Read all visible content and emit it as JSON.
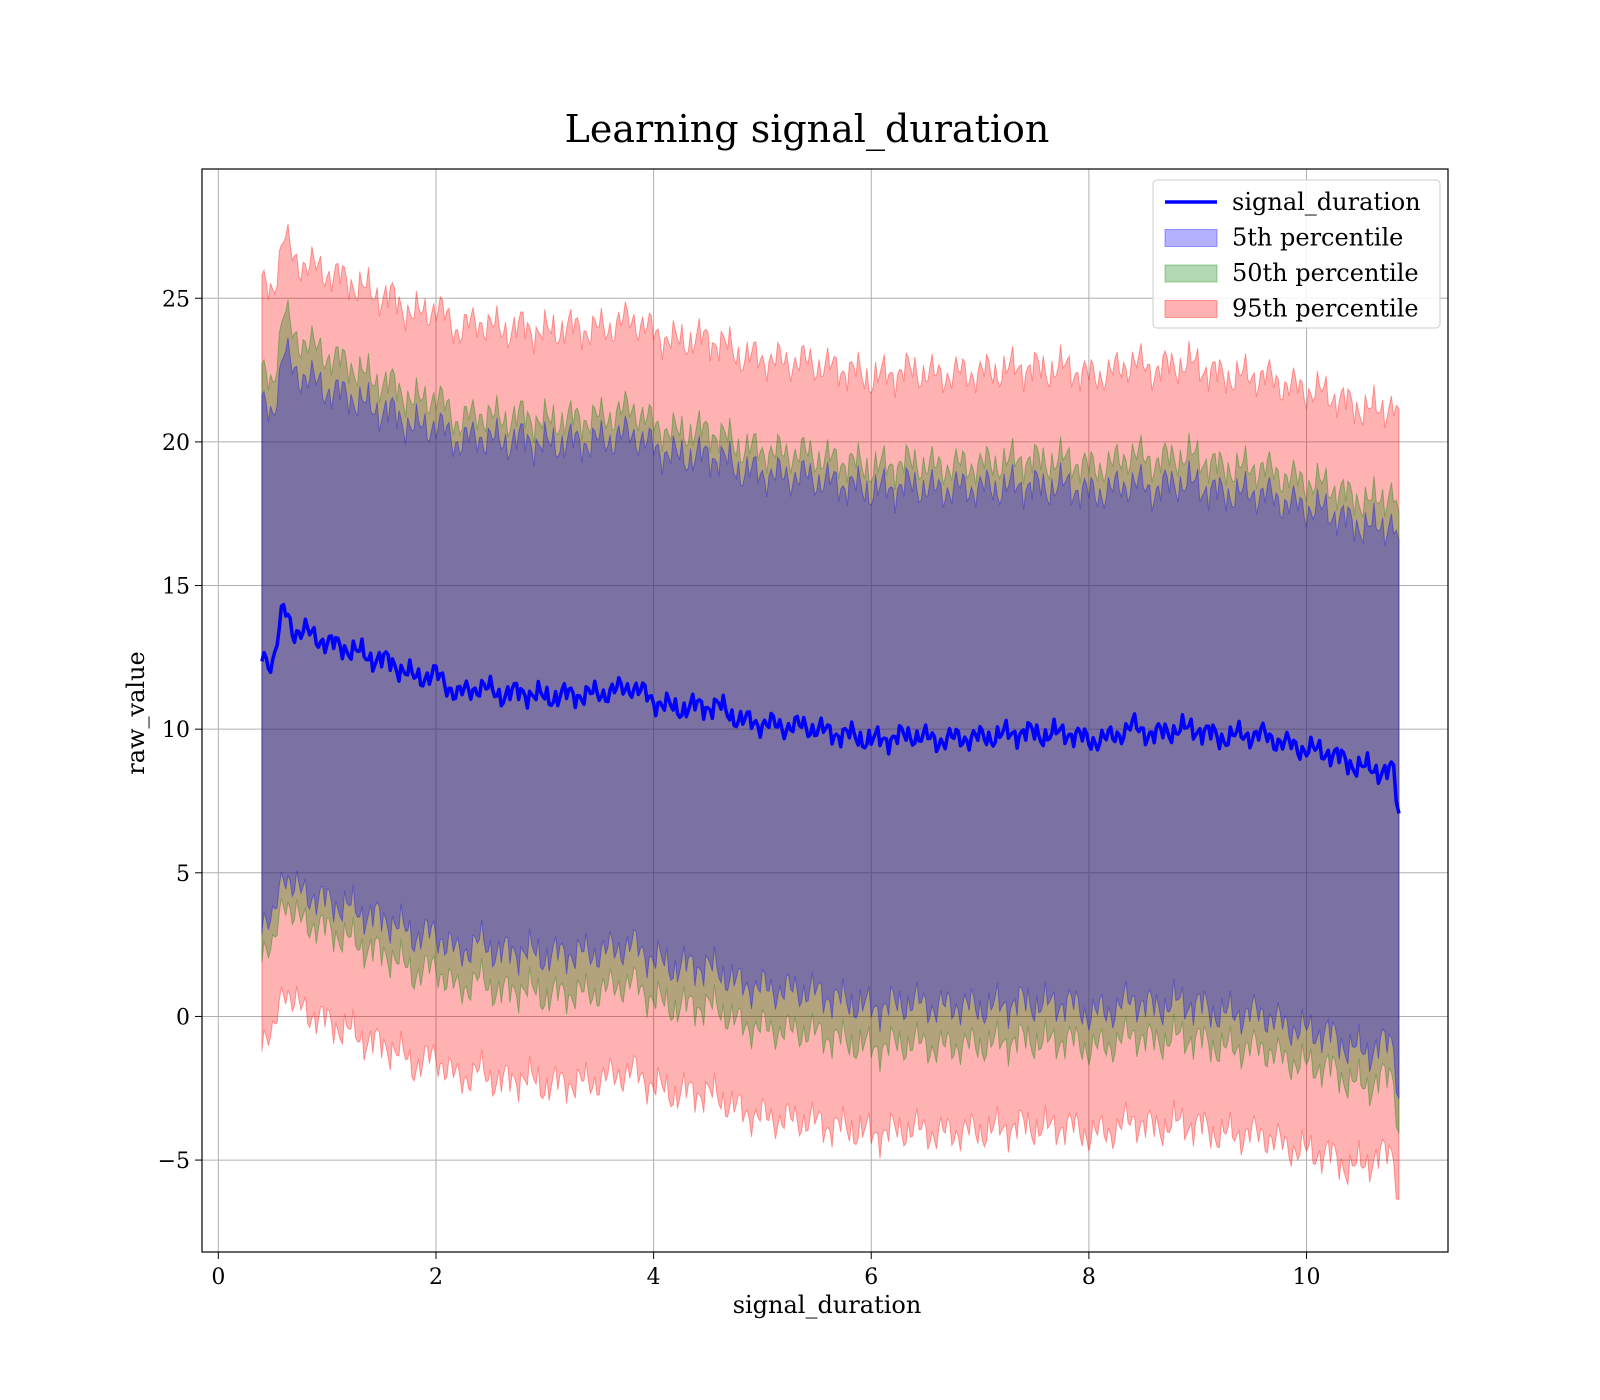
{
  "chart_data": {
    "type": "area",
    "title": "Learning signal_duration",
    "xlabel": "signal_duration",
    "ylabel": "raw_value",
    "xlim": [
      -0.15,
      11.3
    ],
    "ylim": [
      -8.2,
      29.5
    ],
    "xticks": [
      0,
      2,
      4,
      6,
      8,
      10
    ],
    "yticks": [
      -5,
      0,
      5,
      10,
      15,
      20,
      25
    ],
    "ytick_labels": [
      "−5",
      "0",
      "5",
      "10",
      "15",
      "20",
      "25"
    ],
    "grid": true,
    "legend_position": "top-right",
    "x": [
      0.4,
      0.5,
      0.6,
      0.7,
      0.8,
      1.0,
      1.2,
      1.4,
      1.6,
      1.8,
      2.0,
      2.2,
      2.4,
      2.6,
      2.8,
      3.0,
      3.2,
      3.4,
      3.6,
      3.8,
      4.0,
      4.2,
      4.4,
      4.6,
      4.8,
      5.0,
      5.2,
      5.4,
      5.6,
      5.8,
      6.0,
      6.2,
      6.4,
      6.6,
      6.8,
      7.0,
      7.2,
      7.4,
      7.6,
      7.8,
      8.0,
      8.2,
      8.4,
      8.6,
      8.8,
      9.0,
      9.2,
      9.4,
      9.6,
      9.8,
      10.0,
      10.2,
      10.4,
      10.6,
      10.8,
      10.85
    ],
    "mean": [
      12.6,
      12.3,
      14.2,
      13.4,
      13.4,
      13.0,
      12.8,
      12.5,
      12.3,
      11.8,
      11.9,
      11.2,
      11.5,
      11.2,
      11.3,
      11.1,
      11.2,
      11.2,
      11.3,
      11.5,
      11.0,
      10.7,
      10.8,
      10.8,
      10.3,
      10.2,
      10.1,
      10.1,
      9.9,
      9.8,
      9.6,
      9.7,
      9.8,
      9.6,
      9.7,
      9.7,
      9.8,
      9.9,
      9.8,
      9.9,
      9.6,
      9.7,
      10.1,
      9.8,
      10.0,
      10.0,
      9.7,
      9.8,
      9.8,
      9.5,
      9.3,
      9.2,
      8.8,
      8.6,
      8.5,
      6.9
    ],
    "series": [
      {
        "name": "5th percentile",
        "color": "#0000ff",
        "upper": [
          21.2,
          21.0,
          23.2,
          22.4,
          22.3,
          21.8,
          21.6,
          21.2,
          21.0,
          20.5,
          20.6,
          20.0,
          20.2,
          20.0,
          20.1,
          19.9,
          20.0,
          20.0,
          20.1,
          20.3,
          19.8,
          19.5,
          19.5,
          19.5,
          19.0,
          18.9,
          18.8,
          18.8,
          18.6,
          18.5,
          18.3,
          18.4,
          18.5,
          18.3,
          18.4,
          18.4,
          18.4,
          18.5,
          18.4,
          18.5,
          18.2,
          18.3,
          18.6,
          18.3,
          18.6,
          18.5,
          18.2,
          18.2,
          18.2,
          17.9,
          17.7,
          17.6,
          17.2,
          17.0,
          17.2,
          16.0
        ],
        "lower": [
          3.5,
          3.1,
          5.2,
          4.4,
          4.3,
          4.0,
          3.8,
          3.5,
          3.3,
          2.8,
          2.9,
          2.2,
          2.6,
          2.2,
          2.3,
          2.1,
          2.2,
          2.2,
          2.3,
          2.5,
          2.0,
          1.7,
          1.8,
          1.6,
          1.1,
          1.0,
          0.9,
          0.9,
          0.7,
          0.5,
          0.3,
          0.4,
          0.5,
          0.3,
          0.4,
          0.3,
          0.4,
          0.5,
          0.4,
          0.5,
          0.1,
          0.2,
          0.6,
          0.3,
          0.5,
          0.4,
          0.1,
          0.1,
          0.1,
          -0.3,
          -0.5,
          -0.6,
          -1.1,
          -1.2,
          -0.8,
          -3.0
        ]
      },
      {
        "name": "50th percentile",
        "color": "#008000",
        "upper": [
          22.3,
          22.1,
          24.6,
          23.6,
          23.5,
          23.0,
          22.7,
          22.2,
          22.0,
          21.4,
          21.6,
          20.7,
          21.0,
          20.8,
          20.9,
          20.7,
          20.8,
          20.8,
          20.9,
          21.2,
          20.6,
          20.3,
          20.4,
          20.3,
          19.8,
          19.7,
          19.6,
          19.6,
          19.4,
          19.3,
          19.1,
          19.2,
          19.3,
          19.1,
          19.2,
          19.2,
          19.3,
          19.4,
          19.3,
          19.4,
          19.1,
          19.2,
          19.6,
          19.3,
          19.5,
          19.5,
          19.1,
          19.1,
          19.1,
          18.8,
          18.6,
          18.5,
          18.1,
          17.9,
          18.3,
          17.0
        ],
        "lower": [
          2.5,
          2.1,
          4.3,
          3.4,
          3.3,
          3.0,
          2.7,
          2.3,
          2.1,
          1.5,
          1.7,
          0.9,
          1.3,
          0.8,
          1.0,
          0.7,
          0.8,
          0.8,
          1.0,
          1.2,
          0.6,
          0.3,
          0.4,
          0.3,
          -0.3,
          -0.4,
          -0.5,
          -0.5,
          -0.7,
          -0.9,
          -1.1,
          -1.0,
          -0.9,
          -1.1,
          -1.0,
          -1.0,
          -0.9,
          -0.8,
          -0.9,
          -0.8,
          -1.1,
          -1.0,
          -0.6,
          -0.9,
          -0.7,
          -0.8,
          -1.1,
          -1.1,
          -1.1,
          -1.5,
          -1.7,
          -1.8,
          -2.3,
          -2.4,
          -2.0,
          -4.2
        ]
      },
      {
        "name": "95th percentile",
        "color": "#ff0000",
        "upper": [
          25.4,
          25.3,
          27.2,
          26.3,
          26.2,
          25.9,
          25.6,
          25.2,
          25.0,
          24.4,
          24.7,
          23.9,
          24.2,
          23.9,
          24.0,
          23.8,
          24.0,
          23.9,
          24.0,
          24.3,
          23.8,
          23.5,
          23.6,
          23.5,
          23.0,
          22.9,
          22.8,
          22.8,
          22.6,
          22.5,
          22.2,
          22.4,
          22.5,
          22.3,
          22.4,
          22.4,
          22.5,
          22.6,
          22.5,
          22.6,
          22.3,
          22.4,
          22.8,
          22.5,
          22.7,
          22.7,
          22.3,
          22.3,
          22.3,
          22.0,
          21.8,
          21.7,
          21.3,
          21.1,
          21.3,
          20.6
        ],
        "lower": [
          -0.6,
          -0.9,
          1.2,
          0.4,
          0.2,
          -0.2,
          -0.5,
          -0.9,
          -1.1,
          -1.7,
          -1.4,
          -2.2,
          -1.9,
          -2.3,
          -2.1,
          -2.4,
          -2.3,
          -2.3,
          -2.1,
          -1.9,
          -2.4,
          -2.7,
          -2.6,
          -2.8,
          -3.3,
          -3.5,
          -3.6,
          -3.6,
          -3.8,
          -3.9,
          -4.1,
          -4.0,
          -3.9,
          -4.1,
          -4.0,
          -4.0,
          -3.9,
          -3.8,
          -3.9,
          -3.8,
          -4.1,
          -4.0,
          -3.6,
          -3.9,
          -3.7,
          -3.8,
          -4.1,
          -4.1,
          -4.1,
          -4.5,
          -4.7,
          -4.8,
          -5.3,
          -5.0,
          -4.7,
          -6.5
        ]
      }
    ],
    "legend": [
      {
        "label": "signal_duration",
        "kind": "line",
        "color": "#0000ff"
      },
      {
        "label": "5th percentile",
        "kind": "patch",
        "color": "#0000ff"
      },
      {
        "label": "50th percentile",
        "kind": "patch",
        "color": "#008000"
      },
      {
        "label": "95th percentile",
        "kind": "patch",
        "color": "#ff0000"
      }
    ],
    "line_color": "#0000ff"
  }
}
